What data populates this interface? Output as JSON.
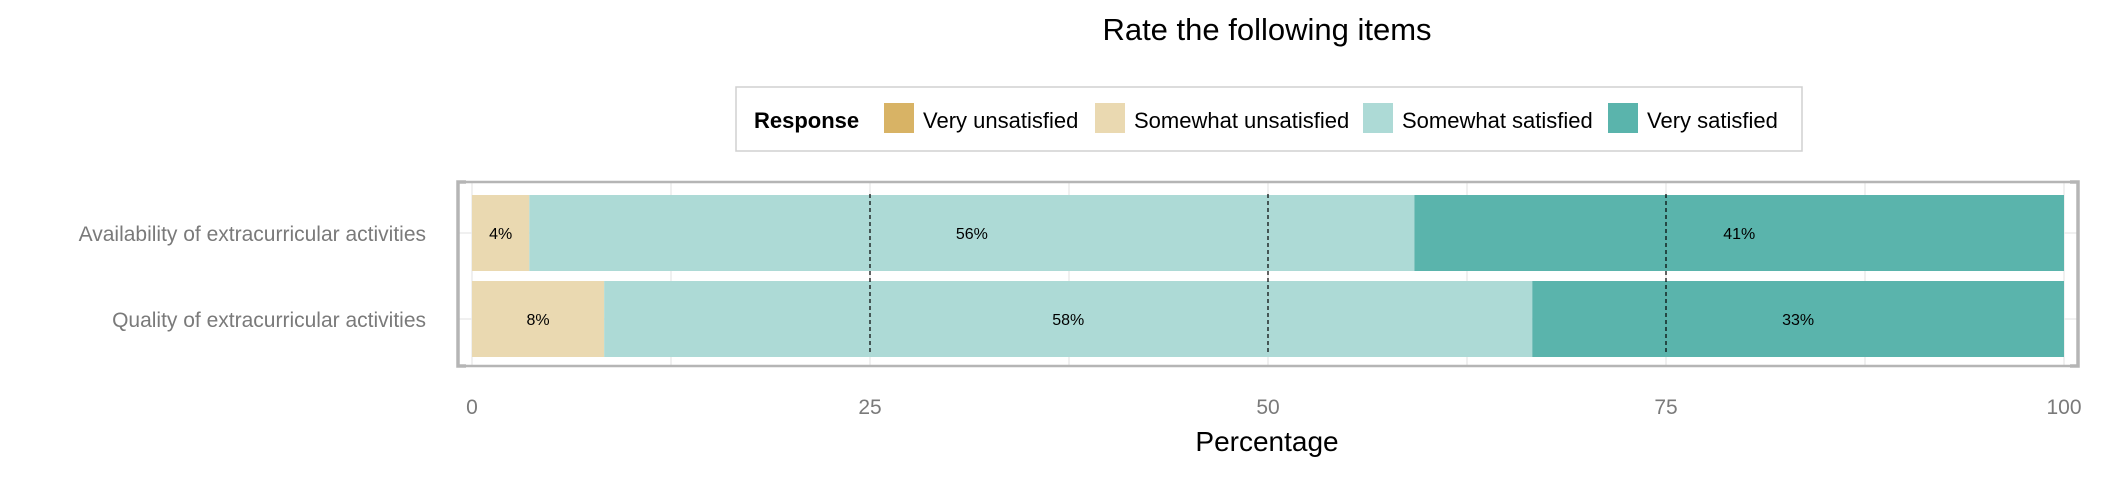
{
  "chart_data": {
    "type": "bar",
    "orientation": "horizontal",
    "stacked": true,
    "title": "Rate the following items",
    "xlabel": "Percentage",
    "ylabel": "",
    "xlim": [
      0,
      100
    ],
    "x_ticks": [
      0,
      25,
      50,
      75,
      100
    ],
    "grid": true,
    "legend": {
      "title": "Response",
      "position": "top"
    },
    "categories": [
      "Availability of extracurricular activities",
      "Quality of extracurricular activities"
    ],
    "series": [
      {
        "name": "Very unsatisfied",
        "color": "#D8B365",
        "values": [
          0,
          0
        ],
        "labels": [
          "",
          ""
        ]
      },
      {
        "name": "Somewhat unsatisfied",
        "color": "#EAD9B1",
        "values": [
          3.6,
          8.3
        ],
        "labels": [
          "4%",
          "8%"
        ]
      },
      {
        "name": "Somewhat satisfied",
        "color": "#ADDAD6",
        "values": [
          55.6,
          58.3
        ],
        "labels": [
          "56%",
          "58%"
        ]
      },
      {
        "name": "Very satisfied",
        "color": "#5AB4AC",
        "values": [
          40.8,
          33.4
        ],
        "labels": [
          "41%",
          "33%"
        ]
      }
    ],
    "reference_lines_x": [
      25,
      50,
      75
    ]
  }
}
